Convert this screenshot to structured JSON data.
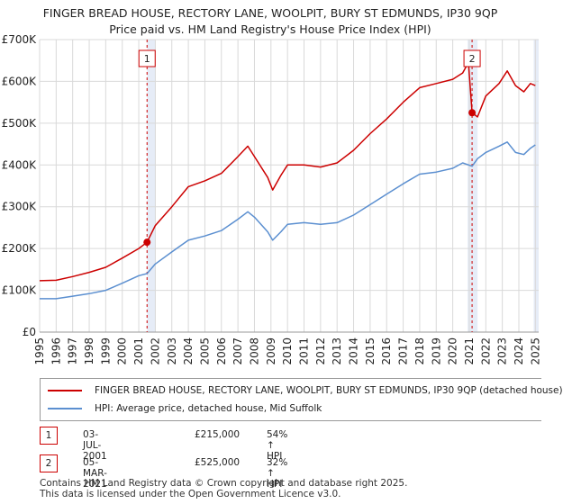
{
  "header": {
    "title_line1": "FINGER BREAD HOUSE, RECTORY LANE, WOOLPIT, BURY ST EDMUNDS, IP30 9QP",
    "title_line2": "Price paid vs. HM Land Registry's House Price Index (HPI)"
  },
  "legend": {
    "items": [
      {
        "label": "FINGER BREAD HOUSE, RECTORY LANE, WOOLPIT, BURY ST EDMUNDS, IP30 9QP (detached house)",
        "color": "#cc0000"
      },
      {
        "label": "HPI: Average price, detached house, Mid Suffolk",
        "color": "#5b8fd0"
      }
    ]
  },
  "transactions": [
    {
      "badge": "1",
      "date": "03-JUL-2001",
      "price": "£215,000",
      "hpi": "54% ↑ HPI"
    },
    {
      "badge": "2",
      "date": "05-MAR-2021",
      "price": "£525,000",
      "hpi": "32% ↑ HPI"
    }
  ],
  "footer": {
    "line1": "Contains HM Land Registry data © Crown copyright and database right 2025.",
    "line2": "This data is licensed under the Open Government Licence v3.0."
  },
  "chart_data": {
    "type": "line",
    "title": "FINGER BREAD HOUSE, RECTORY LANE, WOOLPIT, BURY ST EDMUNDS, IP30 9QP — Price paid vs. HM Land Registry's House Price Index (HPI)",
    "xlabel": "",
    "ylabel": "",
    "xlim": [
      1995,
      2025.2
    ],
    "ylim": [
      0,
      700000
    ],
    "x_ticks": [
      "1995",
      "1996",
      "1997",
      "1998",
      "1999",
      "2000",
      "2001",
      "2002",
      "2003",
      "2004",
      "2005",
      "2006",
      "2007",
      "2008",
      "2009",
      "2010",
      "2011",
      "2012",
      "2013",
      "2014",
      "2015",
      "2016",
      "2017",
      "2018",
      "2019",
      "2020",
      "2021",
      "2022",
      "2023",
      "2024",
      "2025"
    ],
    "y_ticks": [
      {
        "value": 0,
        "label": "£0"
      },
      {
        "value": 100000,
        "label": "£100K"
      },
      {
        "value": 200000,
        "label": "£200K"
      },
      {
        "value": 300000,
        "label": "£300K"
      },
      {
        "value": 400000,
        "label": "£400K"
      },
      {
        "value": 500000,
        "label": "£500K"
      },
      {
        "value": 600000,
        "label": "£600K"
      },
      {
        "value": 700000,
        "label": "£700K"
      }
    ],
    "grid": true,
    "sale_period_shading": [
      [
        2001.5,
        2002.0
      ],
      [
        2020.9,
        2021.5
      ],
      [
        2024.9,
        2025.2
      ]
    ],
    "series": [
      {
        "name": "FINGER BREAD HOUSE, RECTORY LANE, WOOLPIT, BURY ST EDMUNDS, IP30 9QP (detached house)",
        "color": "#cc0000",
        "points": [
          [
            1995,
            123000
          ],
          [
            1996,
            124000
          ],
          [
            1997,
            133000
          ],
          [
            1998,
            143000
          ],
          [
            1999,
            155000
          ],
          [
            2000,
            177000
          ],
          [
            2001,
            200000
          ],
          [
            2001.5,
            215000
          ],
          [
            2002,
            255000
          ],
          [
            2003,
            300000
          ],
          [
            2004,
            348000
          ],
          [
            2005,
            362000
          ],
          [
            2006,
            380000
          ],
          [
            2007,
            420000
          ],
          [
            2007.6,
            445000
          ],
          [
            2008,
            420000
          ],
          [
            2008.8,
            370000
          ],
          [
            2009.1,
            340000
          ],
          [
            2009.6,
            375000
          ],
          [
            2010,
            400000
          ],
          [
            2011,
            400000
          ],
          [
            2012,
            395000
          ],
          [
            2013,
            405000
          ],
          [
            2014,
            435000
          ],
          [
            2015,
            475000
          ],
          [
            2016,
            510000
          ],
          [
            2017,
            550000
          ],
          [
            2018,
            585000
          ],
          [
            2019,
            595000
          ],
          [
            2020,
            605000
          ],
          [
            2020.6,
            620000
          ],
          [
            2020.95,
            645000
          ],
          [
            2021.17,
            525000
          ],
          [
            2021.5,
            515000
          ],
          [
            2022,
            565000
          ],
          [
            2022.8,
            595000
          ],
          [
            2023.3,
            625000
          ],
          [
            2023.8,
            590000
          ],
          [
            2024.3,
            575000
          ],
          [
            2024.7,
            595000
          ],
          [
            2025,
            590000
          ]
        ]
      },
      {
        "name": "HPI: Average price, detached house, Mid Suffolk",
        "color": "#5b8fd0",
        "points": [
          [
            1995,
            80000
          ],
          [
            1996,
            80000
          ],
          [
            1997,
            86000
          ],
          [
            1998,
            92000
          ],
          [
            1999,
            100000
          ],
          [
            2000,
            117000
          ],
          [
            2001,
            135000
          ],
          [
            2001.5,
            140000
          ],
          [
            2002,
            163000
          ],
          [
            2003,
            192000
          ],
          [
            2004,
            220000
          ],
          [
            2005,
            230000
          ],
          [
            2006,
            243000
          ],
          [
            2007,
            270000
          ],
          [
            2007.6,
            288000
          ],
          [
            2008,
            275000
          ],
          [
            2008.8,
            240000
          ],
          [
            2009.1,
            220000
          ],
          [
            2009.6,
            240000
          ],
          [
            2010,
            258000
          ],
          [
            2011,
            262000
          ],
          [
            2012,
            258000
          ],
          [
            2013,
            262000
          ],
          [
            2014,
            280000
          ],
          [
            2015,
            305000
          ],
          [
            2016,
            330000
          ],
          [
            2017,
            355000
          ],
          [
            2018,
            378000
          ],
          [
            2019,
            383000
          ],
          [
            2020,
            392000
          ],
          [
            2020.6,
            405000
          ],
          [
            2021.17,
            397000
          ],
          [
            2021.5,
            415000
          ],
          [
            2022,
            430000
          ],
          [
            2022.8,
            445000
          ],
          [
            2023.3,
            455000
          ],
          [
            2023.8,
            430000
          ],
          [
            2024.3,
            425000
          ],
          [
            2024.7,
            440000
          ],
          [
            2025,
            448000
          ]
        ]
      }
    ],
    "markers": [
      {
        "label": "1",
        "x": 2001.5,
        "y": 215000
      },
      {
        "label": "2",
        "x": 2021.17,
        "y": 525000
      }
    ]
  }
}
